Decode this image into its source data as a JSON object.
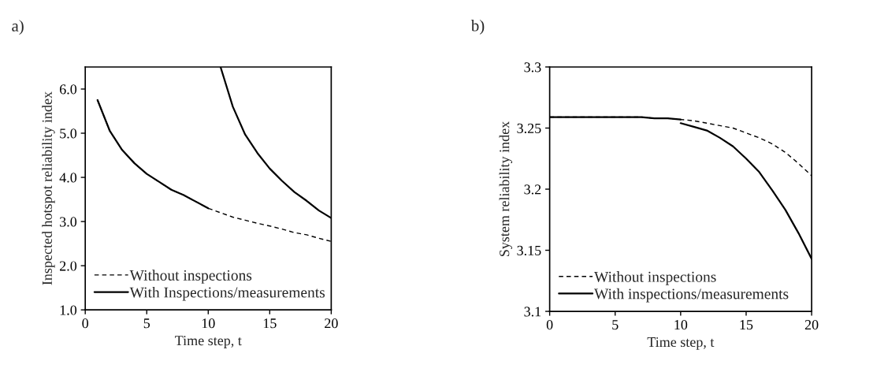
{
  "chart_data": [
    {
      "type": "line",
      "title": "a)",
      "xlabel": "Time step, t",
      "ylabel": "Inspected hotspot reliability index",
      "xlim": [
        0,
        20
      ],
      "xticks": [
        0,
        5,
        10,
        15,
        20
      ],
      "ylim": [
        1,
        6.5
      ],
      "yticks": [
        {
          "value": 1,
          "label": "1.0"
        },
        {
          "value": 2,
          "label": "2.0"
        },
        {
          "value": 3,
          "label": "3.0"
        },
        {
          "value": 4,
          "label": "4.0"
        },
        {
          "value": 5,
          "label": "5.0"
        },
        {
          "value": 6,
          "label": "6.0"
        }
      ],
      "grid": false,
      "legend": "bottom left",
      "marker": "none",
      "series": [
        {
          "name": "Without inspections",
          "color": "#000000",
          "line_style": "dashed",
          "x": [
            1,
            2,
            3,
            4,
            5,
            6,
            7,
            8,
            9,
            10,
            11,
            12,
            13,
            14,
            15,
            16,
            17,
            18,
            19,
            20
          ],
          "values": [
            5.75,
            5.05,
            4.62,
            4.32,
            4.08,
            3.9,
            3.72,
            3.6,
            3.45,
            3.3,
            3.2,
            3.1,
            3.03,
            2.96,
            2.9,
            2.83,
            2.75,
            2.7,
            2.62,
            2.55
          ]
        },
        {
          "name": "With Inspections/measurements",
          "color": "#000000",
          "line_style": "solid",
          "x": [
            1,
            2,
            3,
            4,
            5,
            6,
            7,
            8,
            9,
            10
          ],
          "values": [
            5.75,
            5.05,
            4.62,
            4.32,
            4.08,
            3.9,
            3.72,
            3.6,
            3.45,
            3.3
          ]
        },
        {
          "color": "#000000",
          "line_style": "solid",
          "x": [
            11,
            12,
            13,
            14,
            15,
            16,
            17,
            18,
            19,
            20
          ],
          "values": [
            6.5,
            5.6,
            4.97,
            4.55,
            4.2,
            3.92,
            3.67,
            3.47,
            3.25,
            3.08
          ]
        }
      ]
    },
    {
      "type": "line",
      "title": "b)",
      "xlabel": "Time step, t",
      "ylabel": "System reliability index",
      "xlim": [
        0,
        20
      ],
      "xticks": [
        0,
        5,
        10,
        15,
        20
      ],
      "ylim": [
        3.1,
        3.3
      ],
      "yticks": [
        3.1,
        3.15,
        3.2,
        3.25,
        3.3
      ],
      "grid": false,
      "legend": "bottom left",
      "marker": "none",
      "series": [
        {
          "name": "Without inspections",
          "color": "#000000",
          "line_style": "dashed",
          "x": [
            0,
            1,
            2,
            3,
            4,
            5,
            6,
            7,
            8,
            9,
            10,
            11,
            12,
            13,
            14,
            15,
            16,
            17,
            18,
            19,
            20
          ],
          "values": [
            3.259,
            3.259,
            3.259,
            3.259,
            3.259,
            3.259,
            3.259,
            3.259,
            3.258,
            3.258,
            3.257,
            3.256,
            3.254,
            3.252,
            3.25,
            3.246,
            3.242,
            3.237,
            3.23,
            3.221,
            3.211
          ]
        },
        {
          "name": "With inspections/measurements",
          "color": "#000000",
          "line_style": "solid",
          "x": [
            0,
            1,
            2,
            3,
            4,
            5,
            6,
            7,
            8,
            9,
            10
          ],
          "values": [
            3.259,
            3.259,
            3.259,
            3.259,
            3.259,
            3.259,
            3.259,
            3.259,
            3.258,
            3.258,
            3.257
          ]
        },
        {
          "color": "#000000",
          "line_style": "solid",
          "x": [
            10,
            11,
            12,
            13,
            14,
            15,
            16,
            17,
            18,
            19,
            20
          ],
          "values": [
            3.254,
            3.251,
            3.248,
            3.242,
            3.235,
            3.225,
            3.214,
            3.199,
            3.183,
            3.164,
            3.143
          ]
        }
      ]
    }
  ]
}
